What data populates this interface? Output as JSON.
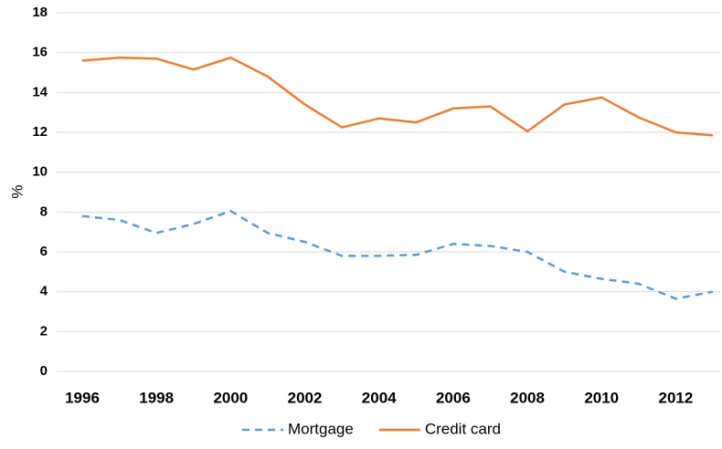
{
  "chart_data": {
    "type": "line",
    "ylabel": "%",
    "x": [
      1996,
      1997,
      1998,
      1999,
      2000,
      2001,
      2002,
      2003,
      2004,
      2005,
      2006,
      2007,
      2008,
      2009,
      2010,
      2011,
      2012,
      2013
    ],
    "xlim": [
      1996,
      2013
    ],
    "xticks": [
      1996,
      1998,
      2000,
      2002,
      2004,
      2006,
      2008,
      2010,
      2012
    ],
    "ylim": [
      0,
      18
    ],
    "yticks": [
      0,
      2,
      4,
      6,
      8,
      10,
      12,
      14,
      16,
      18
    ],
    "grid": true,
    "legend": "bottom",
    "series": [
      {
        "name": "Mortgage",
        "color": "#5b9bd5",
        "dashed": true,
        "values": [
          7.8,
          7.6,
          6.95,
          7.4,
          8.05,
          6.95,
          6.5,
          5.8,
          5.8,
          5.85,
          6.4,
          6.3,
          6.0,
          5.0,
          4.65,
          4.4,
          3.65,
          4.0
        ]
      },
      {
        "name": "Credit card",
        "color": "#ed7d31",
        "dashed": false,
        "values": [
          15.6,
          15.75,
          15.7,
          15.15,
          15.75,
          14.8,
          13.4,
          12.25,
          12.7,
          12.5,
          13.2,
          13.3,
          12.05,
          13.4,
          13.75,
          12.75,
          12.0,
          11.85
        ]
      }
    ]
  }
}
